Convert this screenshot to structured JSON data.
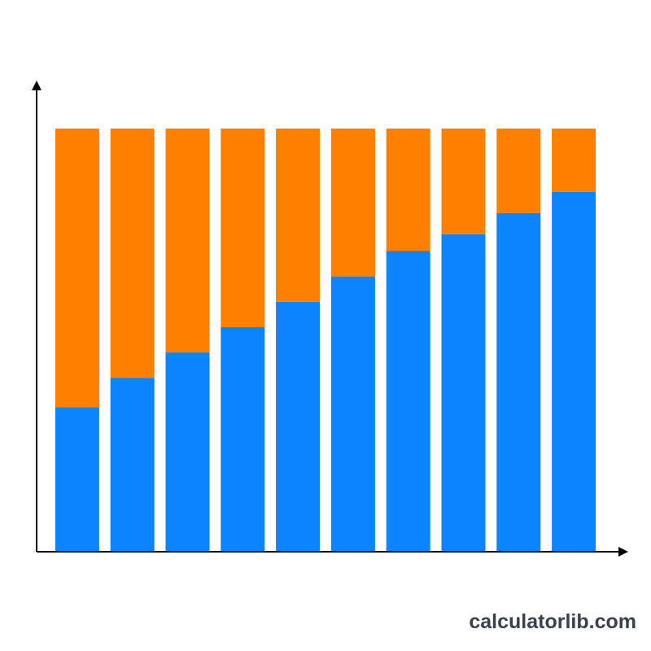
{
  "chart_data": {
    "type": "stacked_bar",
    "categories": [
      null,
      null,
      null,
      null,
      null,
      null,
      null,
      null,
      null,
      null
    ],
    "series": [
      {
        "color": "#0a84ff",
        "values": [
          34,
          41,
          47,
          53,
          59,
          65,
          71,
          75,
          80,
          85
        ]
      },
      {
        "color": "#ff7f00",
        "values": [
          66,
          59,
          53,
          47,
          41,
          35,
          29,
          25,
          20,
          15
        ]
      }
    ],
    "ylim": [
      0,
      100
    ],
    "watermark": "calculatorlib.com"
  }
}
